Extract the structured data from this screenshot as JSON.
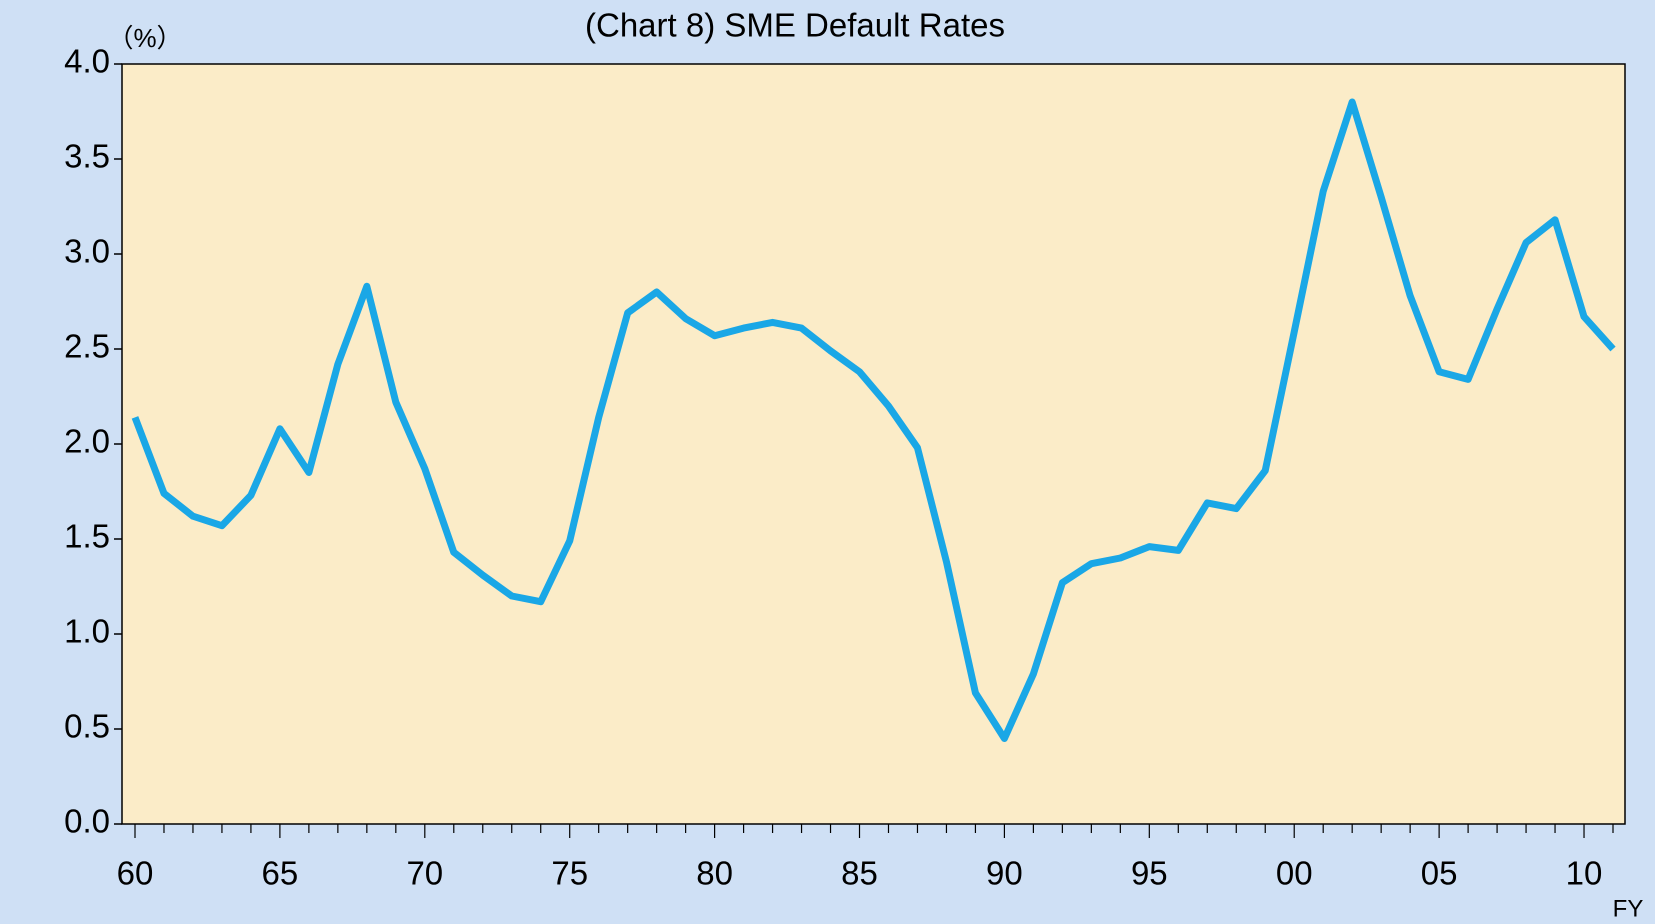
{
  "chart_data": {
    "type": "line",
    "title": "(Chart 8) SME Default Rates",
    "y_axis_label": "（%）",
    "x_axis_label": "FY",
    "categories": [
      "60",
      null,
      null,
      null,
      null,
      "65",
      null,
      null,
      null,
      null,
      "70",
      null,
      null,
      null,
      null,
      "75",
      null,
      null,
      null,
      null,
      "80",
      null,
      null,
      null,
      null,
      "85",
      null,
      null,
      null,
      null,
      "90",
      null,
      null,
      null,
      null,
      "95",
      null,
      null,
      null,
      null,
      "00",
      null,
      null,
      null,
      null,
      "05",
      null,
      null,
      null,
      null,
      "10",
      null
    ],
    "series": [
      {
        "name": "SME Default Rates",
        "color": "#1aa7e6",
        "values": [
          2.14,
          1.74,
          1.62,
          1.57,
          1.73,
          2.08,
          1.85,
          2.42,
          2.83,
          2.22,
          1.87,
          1.43,
          1.31,
          1.2,
          1.17,
          1.49,
          2.14,
          2.69,
          2.8,
          2.66,
          2.57,
          2.61,
          2.64,
          2.61,
          2.49,
          2.38,
          2.2,
          1.98,
          1.38,
          0.69,
          0.45,
          0.79,
          1.27,
          1.37,
          1.4,
          1.46,
          1.44,
          1.69,
          1.66,
          1.86,
          2.59,
          3.33,
          3.8,
          3.3,
          2.78,
          2.38,
          2.34,
          2.71,
          3.06,
          3.18,
          2.67,
          2.5
        ]
      }
    ],
    "ylim": [
      0,
      4
    ],
    "yticks": [
      {
        "value": 0,
        "label": "0.0"
      },
      {
        "value": 0.5,
        "label": "0.5"
      },
      {
        "value": 1,
        "label": "1.0"
      },
      {
        "value": 1.5,
        "label": "1.5"
      },
      {
        "value": 2,
        "label": "2.0"
      },
      {
        "value": 2.5,
        "label": "2.5"
      },
      {
        "value": 3,
        "label": "3.0"
      },
      {
        "value": 3.5,
        "label": "3.5"
      },
      {
        "value": 4,
        "label": "4.0"
      }
    ],
    "grid": false
  }
}
